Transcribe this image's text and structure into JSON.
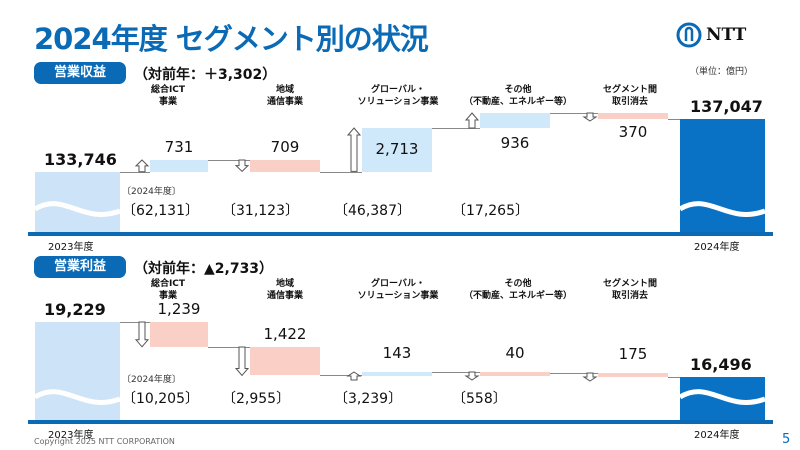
{
  "title": "2024年度 セグメント別の状況",
  "logo": "NTT",
  "unit": "（単位：億円）",
  "copyright": "Copyright 2025 NTT CORPORATION",
  "page_number": "5",
  "colors": {
    "brand": "#0a6ab5",
    "increase": "#cfe8fa",
    "decrease": "#f9cfc6",
    "start_bar": "#cde3f7",
    "end_bar": "#0a72c4"
  },
  "chart_data": [
    {
      "type": "waterfall",
      "title": "営業収益",
      "yoy_label": "（対前年：＋3,302）",
      "start": {
        "label": "2023年度",
        "value": 133746,
        "value_label": "133,746"
      },
      "end": {
        "label": "2024年度",
        "value": 137047,
        "value_label": "137,047"
      },
      "segment_note": "〔2024年度〕",
      "segments": [
        {
          "name_line1": "総合ICT",
          "name_line2": "事業",
          "change": 731,
          "change_label": "731",
          "fy2024": "〔62,131〕"
        },
        {
          "name_line1": "地域",
          "name_line2": "通信事業",
          "change": -709,
          "change_label": "709",
          "fy2024": "〔31,123〕"
        },
        {
          "name_line1": "グローバル・",
          "name_line2": "ソリューション事業",
          "change": 2713,
          "change_label": "2,713",
          "fy2024": "〔46,387〕"
        },
        {
          "name_line1": "その他",
          "name_line2": "（不動産、エネルギー等）",
          "change": 936,
          "change_label": "936",
          "fy2024": "〔17,265〕"
        },
        {
          "name_line1": "セグメント間",
          "name_line2": "取引消去",
          "change": -370,
          "change_label": "370",
          "fy2024": ""
        }
      ]
    },
    {
      "type": "waterfall",
      "title": "営業利益",
      "yoy_label": "（対前年：▲2,733）",
      "start": {
        "label": "2023年度",
        "value": 19229,
        "value_label": "19,229"
      },
      "end": {
        "label": "2024年度",
        "value": 16496,
        "value_label": "16,496"
      },
      "segment_note": "〔2024年度〕",
      "segments": [
        {
          "name_line1": "総合ICT",
          "name_line2": "事業",
          "change": -1239,
          "change_label": "1,239",
          "fy2024": "〔10,205〕"
        },
        {
          "name_line1": "地域",
          "name_line2": "通信事業",
          "change": -1422,
          "change_label": "1,422",
          "fy2024": "〔2,955〕"
        },
        {
          "name_line1": "グローバル・",
          "name_line2": "ソリューション事業",
          "change": 143,
          "change_label": "143",
          "fy2024": "〔3,239〕"
        },
        {
          "name_line1": "その他",
          "name_line2": "（不動産、エネルギー等）",
          "change": -40,
          "change_label": "40",
          "fy2024": "〔558〕"
        },
        {
          "name_line1": "セグメント間",
          "name_line2": "取引消去",
          "change": -175,
          "change_label": "175",
          "fy2024": ""
        }
      ]
    }
  ]
}
